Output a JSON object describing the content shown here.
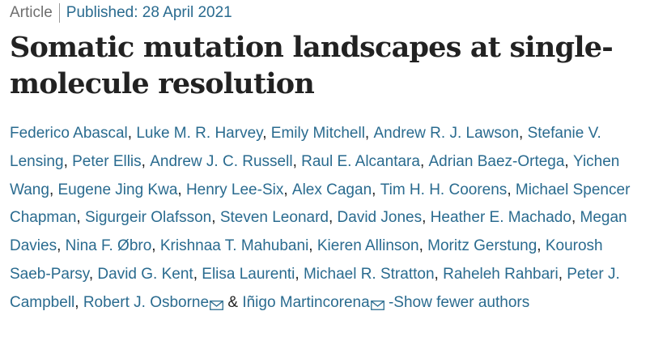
{
  "article": {
    "type": "Article",
    "published": "Published: 28 April 2021",
    "title": "Somatic mutation landscapes at single-molecule resolution"
  },
  "authors": [
    {
      "name": "Federico Abascal",
      "sep": ", "
    },
    {
      "name": "Luke M. R. Harvey",
      "sep": ", "
    },
    {
      "name": "Emily Mitchell",
      "sep": ", "
    },
    {
      "name": "Andrew R. J. Lawson",
      "sep": ", "
    },
    {
      "name": "Stefanie V. Lensing",
      "sep": ", "
    },
    {
      "name": "Peter Ellis",
      "sep": ", "
    },
    {
      "name": "Andrew J. C. Russell",
      "sep": ", "
    },
    {
      "name": "Raul E. Alcantara",
      "sep": ", "
    },
    {
      "name": "Adrian Baez-Ortega",
      "sep": ", "
    },
    {
      "name": "Yichen Wang",
      "sep": ", "
    },
    {
      "name": "Eugene Jing Kwa",
      "sep": ", "
    },
    {
      "name": "Henry Lee-Six",
      "sep": ", "
    },
    {
      "name": "Alex Cagan",
      "sep": ", "
    },
    {
      "name": "Tim H. H. Coorens",
      "sep": ", "
    },
    {
      "name": "Michael Spencer Chapman",
      "sep": ", "
    },
    {
      "name": "Sigurgeir Olafsson",
      "sep": ", "
    },
    {
      "name": "Steven Leonard",
      "sep": ", "
    },
    {
      "name": "David Jones",
      "sep": ", "
    },
    {
      "name": "Heather E. Machado",
      "sep": ", "
    },
    {
      "name": "Megan Davies",
      "sep": ", "
    },
    {
      "name": "Nina F. Øbro",
      "sep": ", "
    },
    {
      "name": "Krishnaa T. Mahubani",
      "sep": ", "
    },
    {
      "name": "Kieren Allinson",
      "sep": ", "
    },
    {
      "name": "Moritz Gerstung",
      "sep": ", "
    },
    {
      "name": "Kourosh Saeb-Parsy",
      "sep": ", "
    },
    {
      "name": "David G. Kent",
      "sep": ", "
    },
    {
      "name": "Elisa Laurenti",
      "sep": ", "
    },
    {
      "name": "Michael R. Stratton",
      "sep": ", "
    },
    {
      "name": "Raheleh Rahbari",
      "sep": ", "
    },
    {
      "name": "Peter J. Campbell",
      "sep": ", "
    },
    {
      "name": "Robert J. Osborne",
      "sep": " & ",
      "email": true
    },
    {
      "name": "Iñigo Martincorena",
      "sep": "",
      "email": true
    }
  ],
  "toggle_label": " -Show fewer authors",
  "icons": {
    "email": "email-icon"
  },
  "colors": {
    "link": "#2a6b8f",
    "text": "#222222",
    "muted": "#6f6f6f"
  }
}
